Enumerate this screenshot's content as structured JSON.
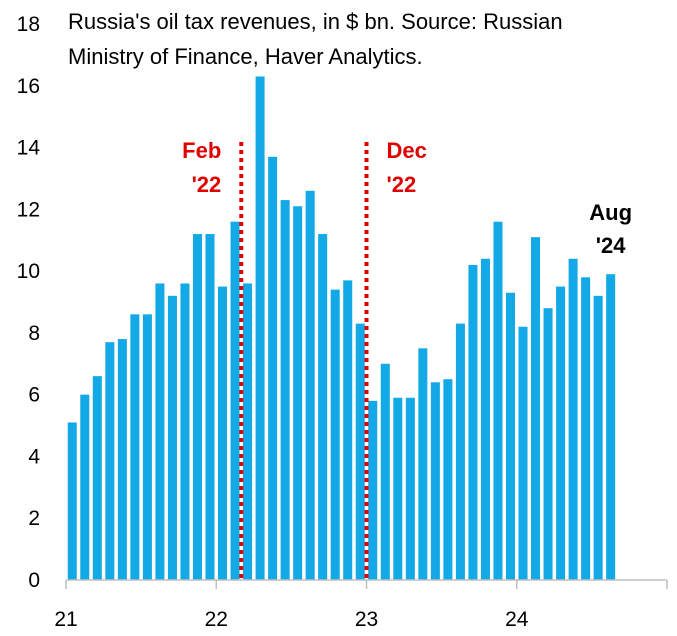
{
  "chart_data": {
    "type": "bar",
    "title_lines": [
      "Russia's oil tax revenues, in $ bn. Source: Russian",
      "Ministry of Finance, Haver Analytics."
    ],
    "xlabel": "",
    "ylabel": "",
    "ylim": [
      0,
      18
    ],
    "yticks": [
      0,
      2,
      4,
      6,
      8,
      10,
      12,
      14,
      16,
      18
    ],
    "xticks": [
      "21",
      "22",
      "23",
      "24"
    ],
    "grid": false,
    "bar_color": "#13a8e6",
    "event_color": "#e00000",
    "categories": [
      "2021-01",
      "2021-02",
      "2021-03",
      "2021-04",
      "2021-05",
      "2021-06",
      "2021-07",
      "2021-08",
      "2021-09",
      "2021-10",
      "2021-11",
      "2021-12",
      "2022-01",
      "2022-02",
      "2022-03",
      "2022-04",
      "2022-05",
      "2022-06",
      "2022-07",
      "2022-08",
      "2022-09",
      "2022-10",
      "2022-11",
      "2022-12",
      "2023-01",
      "2023-02",
      "2023-03",
      "2023-04",
      "2023-05",
      "2023-06",
      "2023-07",
      "2023-08",
      "2023-09",
      "2023-10",
      "2023-11",
      "2023-12",
      "2024-01",
      "2024-02",
      "2024-03",
      "2024-04",
      "2024-05",
      "2024-06",
      "2024-07",
      "2024-08"
    ],
    "values": [
      5.1,
      6.0,
      6.6,
      7.7,
      7.8,
      8.6,
      8.6,
      9.6,
      9.2,
      9.6,
      11.2,
      11.2,
      9.5,
      11.6,
      9.6,
      16.3,
      13.7,
      12.3,
      12.1,
      12.6,
      11.2,
      9.4,
      9.7,
      8.3,
      5.8,
      7.0,
      5.9,
      5.9,
      7.5,
      6.4,
      6.5,
      8.3,
      10.2,
      10.4,
      11.6,
      9.3,
      8.2,
      11.1,
      8.8,
      9.5,
      10.4,
      9.8,
      9.2,
      9.9
    ],
    "annotations": [
      {
        "lines": [
          "Feb",
          "'22"
        ],
        "after_category": "2022-02"
      },
      {
        "lines": [
          "Dec",
          "'22"
        ],
        "after_category": "2022-12"
      }
    ],
    "end_label": [
      "Aug",
      "'24"
    ]
  }
}
